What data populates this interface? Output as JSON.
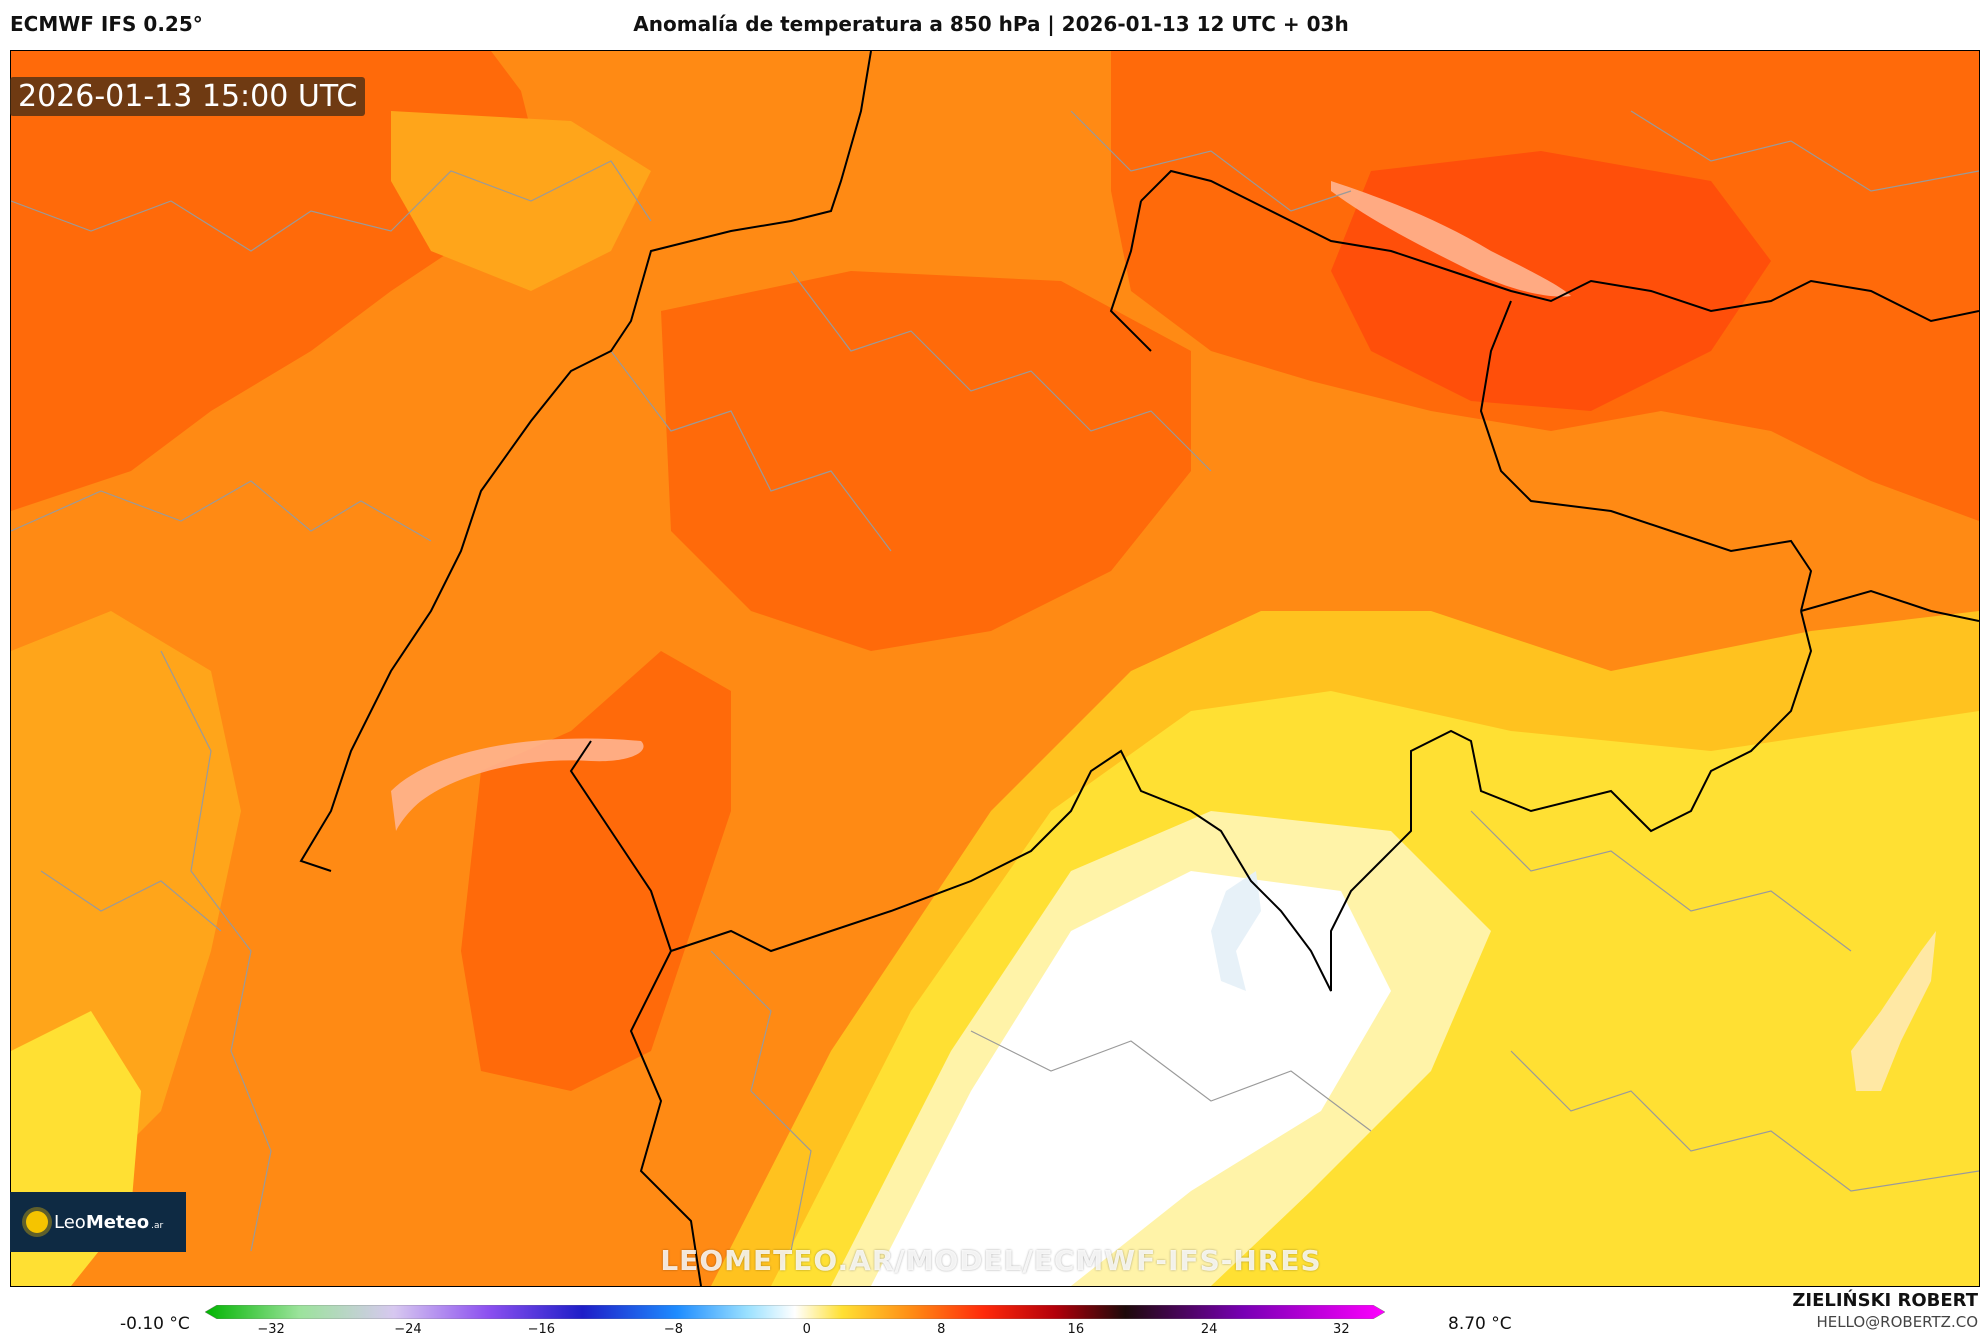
{
  "header": {
    "model": "ECMWF IFS 0.25°",
    "title": "Anomalía de temperatura a 850 hPa | 2026-01-13 12 UTC + 03h"
  },
  "map": {
    "timestamp": "2026-01-13 15:00 UTC",
    "watermark": "LEOMETEO.AR/MODEL/ECMWF-IFS-HRES",
    "logo": {
      "leo": "Leo",
      "meteo": "Meteo",
      "suffix": ".ar"
    },
    "colors": {
      "strong_warm": "#ff4f0a",
      "warm": "#ff6a0a",
      "mid_warm": "#ff8a14",
      "mild_warm": "#ffa51a",
      "light_warm": "#ffc21f",
      "yellow": "#ffe033",
      "pale_yellow": "#fff3a8",
      "neutral": "#ffffff",
      "lake": "#ffb48f",
      "border_country": "#000000",
      "border_region": "#9a9a9a"
    }
  },
  "legend": {
    "min_label": "-0.10 °C",
    "max_label": "8.70 °C",
    "ticks": [
      "−32",
      "−24",
      "−16",
      "−8",
      "0",
      "8",
      "16",
      "24",
      "32"
    ],
    "colorbar_stops": [
      "#00b400",
      "#9be39b",
      "#d7c8f0",
      "#8c50f0",
      "#1e1ec8",
      "#1e8cff",
      "#9be1ff",
      "#ffffff",
      "#ffe033",
      "#ff8a14",
      "#ff2a0a",
      "#b4000a",
      "#1e0a0a",
      "#7800b4",
      "#ff00ff"
    ]
  },
  "author": {
    "name": "ZIELIŃSKI ROBERT",
    "email": "HELLO@ROBERTZ.CO"
  }
}
